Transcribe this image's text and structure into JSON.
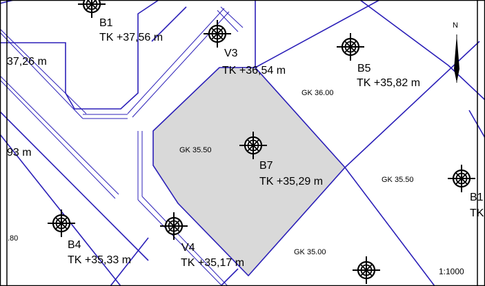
{
  "map": {
    "scale": "1:1000",
    "north_label": "N",
    "colors": {
      "line": "#2b1fb8",
      "parcel_fill": "#d9d9d9",
      "symbol": "#000000",
      "border": "#000000"
    },
    "points": {
      "b1_top": {
        "name": "B1",
        "tk": "TK +37,56 m"
      },
      "v3": {
        "name": "V3",
        "tk": "TK +36,54 m"
      },
      "b5": {
        "name": "B5",
        "tk": "TK +35,82 m"
      },
      "b7": {
        "name": "B7",
        "tk": "TK +35,29 m"
      },
      "b1_right": {
        "name": "B1",
        "tk": "TK"
      },
      "b4": {
        "name": "B4",
        "tk": "TK +35,33 m"
      },
      "v4": {
        "name": "V4",
        "tk": "TK +35,17 m"
      }
    },
    "gk_labels": {
      "gk1": "GK 36.00",
      "gk2": "GK 35.50",
      "gk3": "GK 35.50",
      "gk4": "GK 35.00"
    },
    "partial_labels": {
      "p1": "37,26 m",
      "p2": "93 m",
      "p3": ".80"
    }
  }
}
